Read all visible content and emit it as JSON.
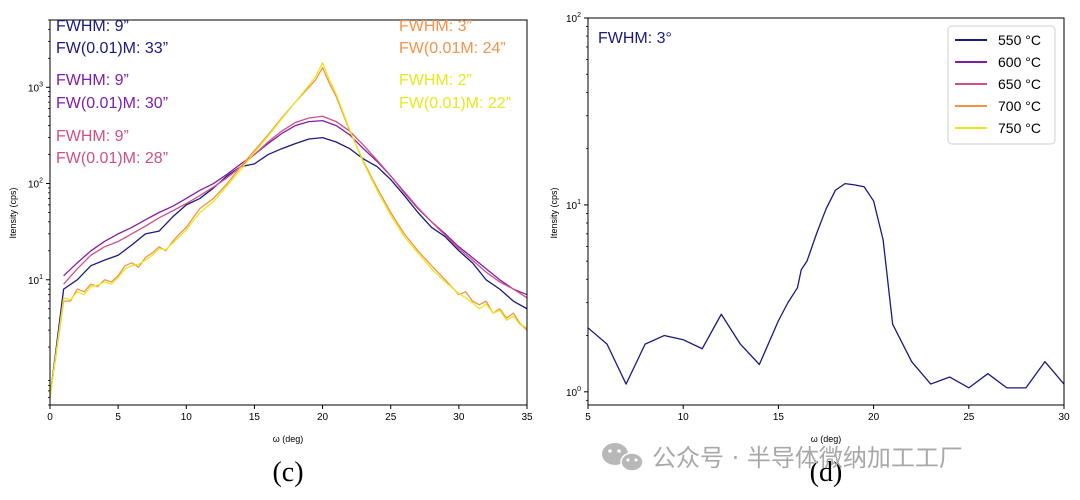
{
  "chart_data": [
    {
      "type": "line",
      "panel_label": "(c)",
      "xlabel": "ω (deg)",
      "ylabel": "Itensity (cps)",
      "yscale": "log",
      "xlim": [
        0,
        35
      ],
      "ylim": [
        0.5,
        5000
      ],
      "xticks": [
        0,
        5,
        10,
        15,
        20,
        25,
        30,
        35
      ],
      "xtick_labels": [
        "0",
        "5",
        "10",
        "15",
        "20",
        "25",
        "30",
        "35"
      ],
      "yticks": [
        10,
        100,
        1000
      ],
      "ytick_labels": {
        "b": [
          "10",
          "10",
          "10"
        ],
        "e": [
          "1",
          "2",
          "3"
        ]
      },
      "annotations": [
        {
          "l1": "FWHM: 9”",
          "l2": "FW(0.01)M: 33”",
          "color": "#1a1a80"
        },
        {
          "l1": "FWHM: 9”",
          "l2": "FW(0.01)M: 30”",
          "color": "#7e1fa8"
        },
        {
          "l1": "FWHM: 9”",
          "l2": "FW(0.01)M: 28”",
          "color": "#d04f85"
        },
        {
          "l1": "FWHM: 3”",
          "l2": "FW(0.01M: 24”",
          "color": "#f5924a"
        },
        {
          "l1": "FWHM: 2”",
          "l2": "FW(0.01)M: 22”",
          "color": "#e8e81c"
        }
      ],
      "series": [
        {
          "name": "550 °C",
          "color": "#1a1a80",
          "x": [
            0,
            1,
            2,
            3,
            4,
            5,
            6,
            7,
            8,
            9,
            10,
            11,
            12,
            13,
            14,
            15,
            16,
            17,
            18,
            19,
            20,
            21,
            22,
            23,
            24,
            25,
            26,
            27,
            28,
            29,
            30,
            31,
            32,
            33,
            34,
            35
          ],
          "y": [
            0.6,
            8,
            10,
            14,
            16,
            18,
            23,
            30,
            32,
            45,
            60,
            70,
            90,
            120,
            150,
            160,
            200,
            230,
            260,
            290,
            300,
            270,
            230,
            180,
            150,
            110,
            75,
            50,
            35,
            28,
            20,
            15,
            10,
            8,
            6,
            5
          ]
        },
        {
          "name": "600 °C",
          "color": "#7e1fa8",
          "x": [
            1,
            2,
            3,
            4,
            5,
            6,
            7,
            8,
            9,
            10,
            11,
            12,
            13,
            14,
            15,
            16,
            17,
            18,
            19,
            20,
            21,
            22,
            23,
            24,
            25,
            26,
            27,
            28,
            29,
            30,
            31,
            32,
            33,
            34,
            35
          ],
          "y": [
            11,
            15,
            20,
            25,
            30,
            35,
            42,
            50,
            58,
            70,
            85,
            100,
            125,
            160,
            200,
            260,
            330,
            400,
            440,
            450,
            400,
            320,
            230,
            170,
            120,
            80,
            55,
            40,
            30,
            22,
            17,
            13,
            10,
            8,
            7
          ]
        },
        {
          "name": "650 °C",
          "color": "#d04f85",
          "x": [
            1,
            2,
            3,
            4,
            5,
            6,
            7,
            8,
            9,
            10,
            11,
            12,
            13,
            14,
            15,
            16,
            17,
            18,
            19,
            20,
            21,
            22,
            23,
            24,
            25,
            26,
            27,
            28,
            29,
            30,
            31,
            32,
            33,
            34,
            35
          ],
          "y": [
            9,
            13,
            18,
            22,
            25,
            30,
            36,
            44,
            52,
            62,
            75,
            92,
            115,
            150,
            200,
            270,
            350,
            430,
            480,
            500,
            440,
            350,
            250,
            175,
            120,
            82,
            56,
            40,
            29,
            21,
            16,
            12,
            9.5,
            8,
            6.5
          ]
        },
        {
          "name": "700 °C",
          "color": "#f5924a",
          "x": [
            0,
            1,
            1.5,
            2,
            2.5,
            3,
            3.5,
            4,
            4.5,
            5,
            5.5,
            6,
            6.5,
            7,
            7.5,
            8,
            8.5,
            9,
            9.5,
            10,
            11,
            12,
            13,
            14,
            15,
            16,
            17,
            18,
            19,
            19.5,
            20,
            20.5,
            21,
            22,
            23,
            24,
            25,
            26,
            27,
            28,
            29,
            30,
            30.5,
            31,
            31.5,
            32,
            32.5,
            33,
            33.5,
            34,
            34.5,
            35
          ],
          "y": [
            0.6,
            6,
            6,
            8,
            7.5,
            9,
            8.5,
            10,
            9.5,
            11,
            14,
            15,
            13.5,
            17,
            19,
            22,
            20,
            25,
            30,
            35,
            55,
            70,
            100,
            150,
            220,
            320,
            480,
            700,
            1000,
            1200,
            1600,
            1100,
            800,
            350,
            170,
            90,
            50,
            30,
            20,
            14,
            10,
            7,
            7.5,
            6,
            5.5,
            6,
            4.5,
            5,
            4,
            4.5,
            3.5,
            3
          ]
        },
        {
          "name": "750 °C",
          "color": "#e8e81c",
          "x": [
            0,
            1,
            1.5,
            2,
            2.5,
            3,
            3.5,
            4,
            4.5,
            5,
            5.5,
            6,
            6.5,
            7,
            7.5,
            8,
            8.5,
            9,
            9.5,
            10,
            11,
            12,
            13,
            14,
            15,
            16,
            17,
            18,
            19,
            19.5,
            20,
            20.5,
            21,
            22,
            23,
            24,
            25,
            26,
            27,
            28,
            29,
            30,
            30.5,
            31,
            31.5,
            32,
            32.5,
            33,
            33.5,
            34,
            34.5,
            35
          ],
          "y": [
            0.6,
            6.5,
            6.2,
            7.5,
            7,
            8.5,
            8.8,
            9.5,
            9,
            10.5,
            13,
            14,
            14.5,
            16,
            18,
            21,
            20.5,
            24,
            28,
            33,
            50,
            65,
            95,
            140,
            210,
            310,
            470,
            700,
            1050,
            1300,
            1800,
            1200,
            850,
            360,
            165,
            85,
            47,
            28,
            19,
            13,
            9.5,
            7.2,
            6.5,
            5.8,
            5,
            5.6,
            4.5,
            4.8,
            3.8,
            4.2,
            3.4,
            3.2
          ]
        }
      ]
    },
    {
      "type": "line",
      "panel_label": "(d)",
      "xlabel": "ω (deg)",
      "ylabel": "Itensity (cps)",
      "yscale": "log",
      "xlim": [
        5,
        30
      ],
      "ylim": [
        0.85,
        100
      ],
      "xticks": [
        5,
        10,
        15,
        20,
        25,
        30
      ],
      "xtick_labels": [
        "5",
        "10",
        "15",
        "20",
        "25",
        "30"
      ],
      "yticks": [
        1,
        10,
        100
      ],
      "ytick_labels": {
        "b": [
          "10",
          "10",
          "10"
        ],
        "e": [
          "0",
          "1",
          "2"
        ]
      },
      "annotation": {
        "text": "FWHM: 3°",
        "color": "#1a1a80"
      },
      "legend": {
        "position": "top-right",
        "entries": [
          {
            "label": "550 °C",
            "color": "#1a1a80"
          },
          {
            "label": "600 °C",
            "color": "#7e1fa8"
          },
          {
            "label": "650 °C",
            "color": "#d04f85"
          },
          {
            "label": "700 °C",
            "color": "#f5924a"
          },
          {
            "label": "750 °C",
            "color": "#e8e81c"
          }
        ]
      },
      "series": [
        {
          "name": "550 °C",
          "color": "#1a1a80",
          "x": [
            5,
            6,
            7,
            8,
            9,
            10,
            11,
            12,
            13,
            14,
            15,
            15.5,
            16,
            16.2,
            16.5,
            17,
            17.5,
            18,
            18.5,
            19,
            19.5,
            20,
            20.5,
            21,
            22,
            23,
            24,
            25,
            26,
            27,
            28,
            29,
            30
          ],
          "y": [
            2.2,
            1.8,
            1.1,
            1.8,
            2.0,
            1.9,
            1.7,
            2.6,
            1.8,
            1.4,
            2.4,
            3.0,
            3.6,
            4.5,
            5.0,
            7.0,
            9.5,
            12.0,
            13.0,
            12.8,
            12.5,
            10.5,
            6.5,
            2.3,
            1.45,
            1.1,
            1.2,
            1.05,
            1.25,
            1.05,
            1.05,
            1.45,
            1.1
          ]
        }
      ]
    }
  ],
  "watermark": {
    "text": "公众号 · 半导体微纳加工工厂",
    "icon": "wechat-icon"
  }
}
